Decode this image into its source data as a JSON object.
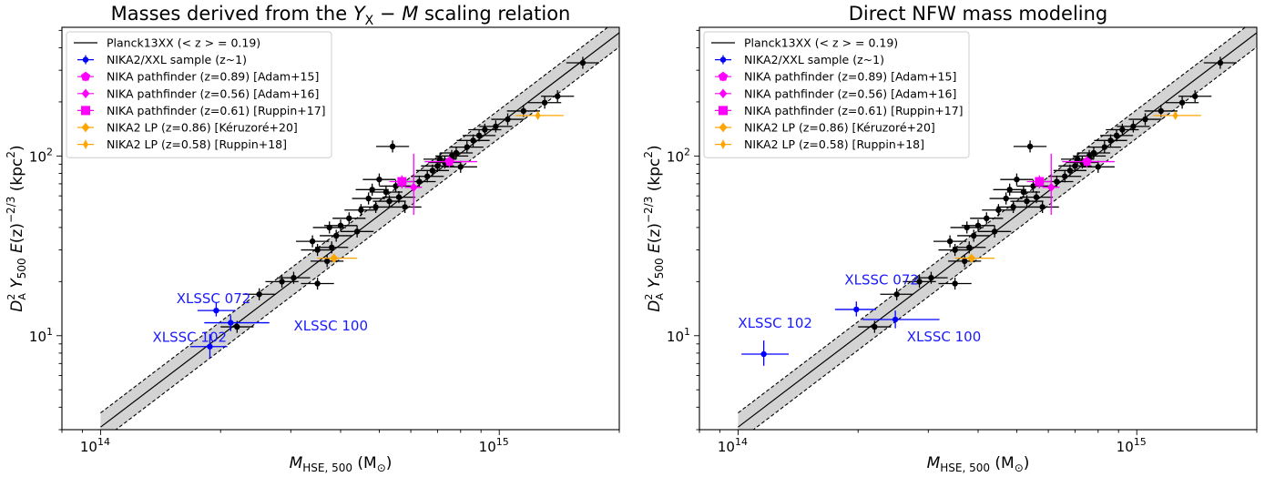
{
  "figure": {
    "panels": [
      {
        "title": "Masses derived from the Y_X − M scaling relation",
        "title_parts": {
          "pre": "Masses derived from the ",
          "sym": "Y",
          "sub": "X",
          "post": " − ",
          "m": "M",
          "tail": " scaling relation"
        }
      },
      {
        "title": "Direct NFW mass modeling",
        "title_parts": {
          "pre": "Direct NFW mass modeling",
          "sym": "",
          "sub": "",
          "post": "",
          "m": "",
          "tail": ""
        }
      }
    ],
    "xlabel": "M_HSE,500 (M⊙)",
    "xlabel_parts": {
      "sym": "M",
      "sub": "HSE, 500",
      "unit": " (M",
      "unit_sub": "⊙",
      "close": ")"
    },
    "ylabel": "D_A^2 Y_500 E(z)^-2/3 (kpc^2)",
    "ylabel_parts": {
      "d": "D",
      "dsup": "2",
      "dsub": "A",
      "y": " Y",
      "ysub": "500",
      "e": " E",
      "ez": "(z)",
      "esup": "−2/3",
      "unit": " (kpc",
      "unitsup": "2",
      "close": ")"
    },
    "x_ticks": [
      {
        "base": "10",
        "exp": "14",
        "value": 100000000000000.0
      },
      {
        "base": "10",
        "exp": "15",
        "value": 1000000000000000.0
      }
    ],
    "y_ticks": [
      {
        "base": "10",
        "exp": "1",
        "value": 10
      },
      {
        "base": "10",
        "exp": "2",
        "value": 100
      }
    ]
  },
  "legend": {
    "placement": "upper-left",
    "entries": [
      {
        "label": "Planck13XX (< z > = 0.19)",
        "color": "#000000",
        "style": "line"
      },
      {
        "label": "NIKA2/XXL sample (z~1)",
        "color": "#0000ff",
        "style": "dot"
      },
      {
        "label": "NIKA pathfinder (z=0.89) [Adam+15]",
        "color": "#ff00ff",
        "style": "pentagon"
      },
      {
        "label": "NIKA pathfinder (z=0.56) [Adam+16]",
        "color": "#ff00ff",
        "style": "diamond"
      },
      {
        "label": "NIKA pathfinder (z=0.61) [Ruppin+17]",
        "color": "#ff00ff",
        "style": "square"
      },
      {
        "label": "NIKA2 LP (z=0.86) [Kéruzoré+20]",
        "color": "#ffa500",
        "style": "diamond"
      },
      {
        "label": "NIKA2 LP (z=0.58) [Ruppin+18]",
        "color": "#ffa500",
        "style": "thin-diamond"
      }
    ]
  },
  "chart_data": [
    {
      "type": "scatter",
      "title": "Masses derived from the Y_X − M scaling relation",
      "xlabel": "M_HSE,500 (M⊙)",
      "ylabel": "D_A^2 Y_500 E(z)^-2/3 (kpc^2)",
      "x_scale": "log",
      "y_scale": "log",
      "xlim": [
        80000000000000.0,
        2000000000000000.0
      ],
      "ylim": [
        3,
        520
      ],
      "relation": {
        "name": "Planck13XX (< z > = 0.19)",
        "points": [
          [
            100000000000000.0,
            3.1
          ],
          [
            2000000000000000.0,
            485
          ]
        ],
        "band_factor": 1.2
      },
      "annotations": [
        {
          "text": "XLSSC 072",
          "x": 155000000000000.0,
          "y": 15.2
        },
        {
          "text": "XLSSC 102",
          "x": 135000000000000.0,
          "y": 9.25
        },
        {
          "text": "XLSSC 100",
          "x": 305000000000000.0,
          "y": 10.7
        }
      ],
      "series": [
        {
          "name": "NIKA2/XXL sample (z~1)",
          "color": "#0000ff",
          "marker": "dot",
          "points": [
            {
              "x": 195000000000000.0,
              "y": 13.8,
              "xerr": [
                175000000000000.0,
                218000000000000.0
              ],
              "yerr": [
                12.8,
                15.3
              ]
            },
            {
              "x": 188000000000000.0,
              "y": 8.7,
              "xerr": [
                168000000000000.0,
                208000000000000.0
              ],
              "yerr": [
                7.5,
                10.2
              ]
            },
            {
              "x": 212000000000000.0,
              "y": 11.8,
              "xerr": [
                182000000000000.0,
                265000000000000.0
              ],
              "yerr": [
                10.6,
                13.0
              ]
            }
          ]
        },
        {
          "name": "NIKA pathfinder (z=0.89) [Adam+15]",
          "color": "#ff00ff",
          "marker": "pentagon",
          "points": [
            {
              "x": 750000000000000.0,
              "y": 93,
              "xerr": [
                650000000000000.0,
                880000000000000.0
              ],
              "yerr": [
                86,
                100
              ]
            }
          ]
        },
        {
          "name": "NIKA pathfinder (z=0.56) [Adam+16]",
          "color": "#ff00ff",
          "marker": "diamond",
          "points": [
            {
              "x": 610000000000000.0,
              "y": 67,
              "xerr": [
                580000000000000.0,
                640000000000000.0
              ],
              "yerr": [
                47,
                103
              ]
            }
          ]
        },
        {
          "name": "NIKA pathfinder (z=0.61) [Ruppin+17]",
          "color": "#ff00ff",
          "marker": "square",
          "points": [
            {
              "x": 570000000000000.0,
              "y": 72,
              "xerr": [
                530000000000000.0,
                610000000000000.0
              ],
              "yerr": [
                66,
                78
              ]
            }
          ]
        },
        {
          "name": "NIKA2 LP (z=0.86) [Kéruzoré+20]",
          "color": "#ffa500",
          "marker": "diamond",
          "points": [
            {
              "x": 385000000000000.0,
              "y": 27,
              "xerr": [
                350000000000000.0,
                440000000000000.0
              ],
              "yerr": [
                25.5,
                28.5
              ]
            }
          ]
        },
        {
          "name": "NIKA2 LP (z=0.58) [Ruppin+18]",
          "color": "#ffa500",
          "marker": "thin-diamond",
          "points": [
            {
              "x": 1250000000000000.0,
              "y": 168,
              "xerr": [
                1100000000000000.0,
                1450000000000000.0
              ],
              "yerr": [
                163,
                173
              ]
            }
          ]
        },
        {
          "name": "Planck clusters",
          "color": "#000000",
          "marker": "dot",
          "points": [
            {
              "x": 220000000000000.0,
              "y": 11.2
            },
            {
              "x": 250000000000000.0,
              "y": 17.0
            },
            {
              "x": 285000000000000.0,
              "y": 20.0
            },
            {
              "x": 305000000000000.0,
              "y": 21.0
            },
            {
              "x": 350000000000000.0,
              "y": 19.5
            },
            {
              "x": 340000000000000.0,
              "y": 33.5
            },
            {
              "x": 350000000000000.0,
              "y": 30.0
            },
            {
              "x": 370000000000000.0,
              "y": 26.0
            },
            {
              "x": 380000000000000.0,
              "y": 31.0
            },
            {
              "x": 375000000000000.0,
              "y": 40.0
            },
            {
              "x": 390000000000000.0,
              "y": 36.0
            },
            {
              "x": 400000000000000.0,
              "y": 41.0
            },
            {
              "x": 420000000000000.0,
              "y": 45.0
            },
            {
              "x": 440000000000000.0,
              "y": 38.0
            },
            {
              "x": 450000000000000.0,
              "y": 50.0
            },
            {
              "x": 470000000000000.0,
              "y": 58.0
            },
            {
              "x": 480000000000000.0,
              "y": 65.0
            },
            {
              "x": 490000000000000.0,
              "y": 52.0
            },
            {
              "x": 500000000000000.0,
              "y": 74.0
            },
            {
              "x": 520000000000000.0,
              "y": 63.0
            },
            {
              "x": 530000000000000.0,
              "y": 56.0
            },
            {
              "x": 550000000000000.0,
              "y": 68.0
            },
            {
              "x": 560000000000000.0,
              "y": 59.0
            },
            {
              "x": 580000000000000.0,
              "y": 52.0
            },
            {
              "x": 540000000000000.0,
              "y": 113.0
            },
            {
              "x": 630000000000000.0,
              "y": 72.0
            },
            {
              "x": 660000000000000.0,
              "y": 77.0
            },
            {
              "x": 680000000000000.0,
              "y": 83.0
            },
            {
              "x": 700000000000000.0,
              "y": 88.0
            },
            {
              "x": 710000000000000.0,
              "y": 96.0
            },
            {
              "x": 730000000000000.0,
              "y": 92.0
            },
            {
              "x": 760000000000000.0,
              "y": 100.0
            },
            {
              "x": 780000000000000.0,
              "y": 104.0
            },
            {
              "x": 800000000000000.0,
              "y": 87.0
            },
            {
              "x": 830000000000000.0,
              "y": 112.0
            },
            {
              "x": 860000000000000.0,
              "y": 122.0
            },
            {
              "x": 890000000000000.0,
              "y": 130.0
            },
            {
              "x": 920000000000000.0,
              "y": 140.0
            },
            {
              "x": 980000000000000.0,
              "y": 146.0
            },
            {
              "x": 1050000000000000.0,
              "y": 160.0
            },
            {
              "x": 1150000000000000.0,
              "y": 178.0
            },
            {
              "x": 1300000000000000.0,
              "y": 198.0
            },
            {
              "x": 1400000000000000.0,
              "y": 215.0
            },
            {
              "x": 1620000000000000.0,
              "y": 330.0
            }
          ]
        }
      ]
    },
    {
      "type": "scatter",
      "title": "Direct NFW mass modeling",
      "xlabel": "M_HSE,500 (M⊙)",
      "ylabel": "D_A^2 Y_500 E(z)^-2/3 (kpc^2)",
      "x_scale": "log",
      "y_scale": "log",
      "xlim": [
        80000000000000.0,
        2000000000000000.0
      ],
      "ylim": [
        3,
        520
      ],
      "relation": {
        "name": "Planck13XX (< z > = 0.19)",
        "points": [
          [
            100000000000000.0,
            3.1
          ],
          [
            2000000000000000.0,
            485
          ]
        ],
        "band_factor": 1.2
      },
      "annotations": [
        {
          "text": "XLSSC 072",
          "x": 185000000000000.0,
          "y": 19.3
        },
        {
          "text": "XLSSC 102",
          "x": 100000000000000.0,
          "y": 11.1
        },
        {
          "text": "XLSSC 100",
          "x": 265000000000000.0,
          "y": 9.3
        }
      ],
      "series": [
        {
          "name": "NIKA2/XXL sample (z~1)",
          "color": "#0000ff",
          "marker": "dot",
          "points": [
            {
              "x": 198000000000000.0,
              "y": 14.0,
              "xerr": [
                175000000000000.0,
                222000000000000.0
              ],
              "yerr": [
                12.8,
                15.5
              ]
            },
            {
              "x": 116000000000000.0,
              "y": 7.9,
              "xerr": [
                102000000000000.0,
                134000000000000.0
              ],
              "yerr": [
                6.8,
                9.4
              ]
            },
            {
              "x": 248000000000000.0,
              "y": 12.3,
              "xerr": [
                205000000000000.0,
                320000000000000.0
              ],
              "yerr": [
                11.0,
                13.8
              ]
            }
          ]
        },
        {
          "name": "NIKA pathfinder (z=0.89) [Adam+15]",
          "color": "#ff00ff",
          "marker": "pentagon",
          "points": [
            {
              "x": 750000000000000.0,
              "y": 93,
              "xerr": [
                650000000000000.0,
                880000000000000.0
              ],
              "yerr": [
                86,
                100
              ]
            }
          ]
        },
        {
          "name": "NIKA pathfinder (z=0.56) [Adam+16]",
          "color": "#ff00ff",
          "marker": "diamond",
          "points": [
            {
              "x": 610000000000000.0,
              "y": 67,
              "xerr": [
                580000000000000.0,
                640000000000000.0
              ],
              "yerr": [
                47,
                103
              ]
            }
          ]
        },
        {
          "name": "NIKA pathfinder (z=0.61) [Ruppin+17]",
          "color": "#ff00ff",
          "marker": "square",
          "points": [
            {
              "x": 570000000000000.0,
              "y": 72,
              "xerr": [
                530000000000000.0,
                610000000000000.0
              ],
              "yerr": [
                66,
                78
              ]
            }
          ]
        },
        {
          "name": "NIKA2 LP (z=0.86) [Kéruzoré+20]",
          "color": "#ffa500",
          "marker": "diamond",
          "points": [
            {
              "x": 385000000000000.0,
              "y": 27,
              "xerr": [
                350000000000000.0,
                440000000000000.0
              ],
              "yerr": [
                25.5,
                28.5
              ]
            }
          ]
        },
        {
          "name": "NIKA2 LP (z=0.58) [Ruppin+18]",
          "color": "#ffa500",
          "marker": "thin-diamond",
          "points": [
            {
              "x": 1250000000000000.0,
              "y": 168,
              "xerr": [
                1100000000000000.0,
                1450000000000000.0
              ],
              "yerr": [
                163,
                173
              ]
            }
          ]
        },
        {
          "name": "Planck clusters",
          "color": "#000000",
          "marker": "dot",
          "points": [
            {
              "x": 220000000000000.0,
              "y": 11.2
            },
            {
              "x": 250000000000000.0,
              "y": 17.0
            },
            {
              "x": 285000000000000.0,
              "y": 20.0
            },
            {
              "x": 305000000000000.0,
              "y": 21.0
            },
            {
              "x": 350000000000000.0,
              "y": 19.5
            },
            {
              "x": 340000000000000.0,
              "y": 33.5
            },
            {
              "x": 350000000000000.0,
              "y": 30.0
            },
            {
              "x": 370000000000000.0,
              "y": 26.0
            },
            {
              "x": 380000000000000.0,
              "y": 31.0
            },
            {
              "x": 375000000000000.0,
              "y": 40.0
            },
            {
              "x": 390000000000000.0,
              "y": 36.0
            },
            {
              "x": 400000000000000.0,
              "y": 41.0
            },
            {
              "x": 420000000000000.0,
              "y": 45.0
            },
            {
              "x": 440000000000000.0,
              "y": 38.0
            },
            {
              "x": 450000000000000.0,
              "y": 50.0
            },
            {
              "x": 470000000000000.0,
              "y": 58.0
            },
            {
              "x": 480000000000000.0,
              "y": 65.0
            },
            {
              "x": 490000000000000.0,
              "y": 52.0
            },
            {
              "x": 500000000000000.0,
              "y": 74.0
            },
            {
              "x": 520000000000000.0,
              "y": 63.0
            },
            {
              "x": 530000000000000.0,
              "y": 56.0
            },
            {
              "x": 550000000000000.0,
              "y": 68.0
            },
            {
              "x": 560000000000000.0,
              "y": 59.0
            },
            {
              "x": 580000000000000.0,
              "y": 52.0
            },
            {
              "x": 540000000000000.0,
              "y": 113.0
            },
            {
              "x": 630000000000000.0,
              "y": 72.0
            },
            {
              "x": 660000000000000.0,
              "y": 77.0
            },
            {
              "x": 680000000000000.0,
              "y": 83.0
            },
            {
              "x": 700000000000000.0,
              "y": 88.0
            },
            {
              "x": 710000000000000.0,
              "y": 96.0
            },
            {
              "x": 730000000000000.0,
              "y": 92.0
            },
            {
              "x": 760000000000000.0,
              "y": 100.0
            },
            {
              "x": 780000000000000.0,
              "y": 104.0
            },
            {
              "x": 800000000000000.0,
              "y": 87.0
            },
            {
              "x": 830000000000000.0,
              "y": 112.0
            },
            {
              "x": 860000000000000.0,
              "y": 122.0
            },
            {
              "x": 890000000000000.0,
              "y": 130.0
            },
            {
              "x": 920000000000000.0,
              "y": 140.0
            },
            {
              "x": 980000000000000.0,
              "y": 146.0
            },
            {
              "x": 1050000000000000.0,
              "y": 160.0
            },
            {
              "x": 1150000000000000.0,
              "y": 178.0
            },
            {
              "x": 1300000000000000.0,
              "y": 198.0
            },
            {
              "x": 1400000000000000.0,
              "y": 215.0
            },
            {
              "x": 1620000000000000.0,
              "y": 330.0
            }
          ]
        }
      ]
    }
  ]
}
